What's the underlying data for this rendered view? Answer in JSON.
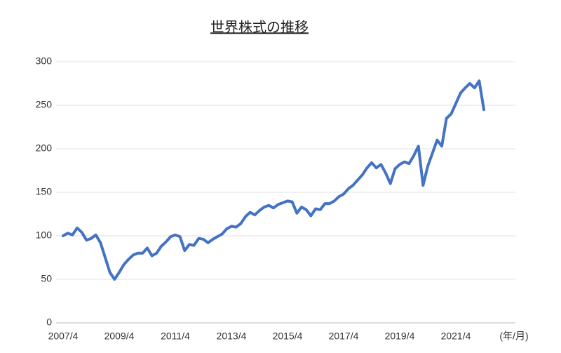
{
  "chart_data": {
    "type": "line",
    "title": "世界株式の推移",
    "x_label": "(年/月)",
    "categories": [
      "2007/4",
      null,
      null,
      null,
      null,
      null,
      null,
      null,
      null,
      null,
      null,
      null,
      "2009/4",
      null,
      null,
      null,
      null,
      null,
      null,
      null,
      null,
      null,
      null,
      null,
      "2011/4",
      null,
      null,
      null,
      null,
      null,
      null,
      null,
      null,
      null,
      null,
      null,
      "2013/4",
      null,
      null,
      null,
      null,
      null,
      null,
      null,
      null,
      null,
      null,
      null,
      "2015/4",
      null,
      null,
      null,
      null,
      null,
      null,
      null,
      null,
      null,
      null,
      null,
      "2017/4",
      null,
      null,
      null,
      null,
      null,
      null,
      null,
      null,
      null,
      null,
      null,
      "2019/4",
      null,
      null,
      null,
      null,
      null,
      null,
      null,
      null,
      null,
      null,
      null,
      "2021/4",
      null,
      null,
      null,
      null,
      null,
      null
    ],
    "series": [
      {
        "name": "世界株式",
        "color": "#4472c4",
        "values": [
          100,
          103,
          101,
          109,
          104,
          95,
          97,
          101,
          92,
          75,
          58,
          50,
          58,
          67,
          73,
          78,
          80,
          80,
          86,
          77,
          80,
          88,
          93,
          99,
          101,
          99,
          83,
          90,
          89,
          97,
          96,
          92,
          96,
          99,
          102,
          108,
          111,
          110,
          114,
          122,
          127,
          124,
          129,
          133,
          135,
          132,
          136,
          138,
          140,
          139,
          126,
          133,
          130,
          123,
          131,
          130,
          137,
          137,
          140,
          145,
          148,
          154,
          158,
          164,
          170,
          178,
          184,
          178,
          182,
          172,
          160,
          177,
          182,
          185,
          183,
          192,
          203,
          158,
          180,
          195,
          210,
          203,
          235,
          240,
          252,
          264,
          270,
          275,
          270,
          278,
          245
        ]
      }
    ],
    "ylim": [
      0,
      300
    ],
    "yticks": [
      0,
      50,
      100,
      150,
      200,
      250,
      300
    ],
    "grid": true
  }
}
